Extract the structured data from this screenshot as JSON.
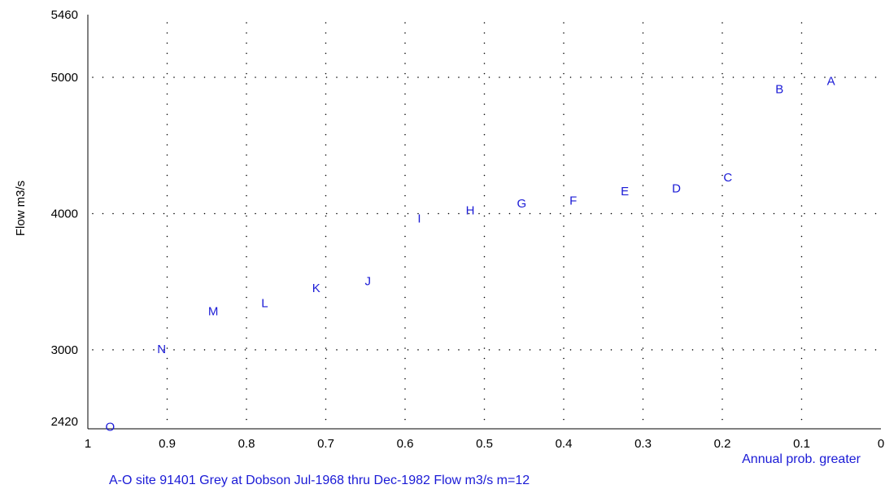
{
  "chart_data": {
    "type": "scatter",
    "xlabel": "Annual prob. greater",
    "ylabel": "Flow m3/s",
    "caption": "A-O  site 91401 Grey at Dobson  Jul-1968 thru Dec-1982 Flow m3/s  m=12",
    "xlim": [
      1,
      0
    ],
    "ylim": [
      2420,
      5460
    ],
    "x_ticks": [
      {
        "value": 1,
        "label": "1"
      },
      {
        "value": 0.9,
        "label": "0.9"
      },
      {
        "value": 0.8,
        "label": "0.8"
      },
      {
        "value": 0.7,
        "label": "0.7"
      },
      {
        "value": 0.6,
        "label": "0.6"
      },
      {
        "value": 0.5,
        "label": "0.5"
      },
      {
        "value": 0.4,
        "label": "0.4"
      },
      {
        "value": 0.3,
        "label": "0.3"
      },
      {
        "value": 0.2,
        "label": "0.2"
      },
      {
        "value": 0.1,
        "label": "0.1"
      },
      {
        "value": 0,
        "label": "0"
      }
    ],
    "y_ticks": [
      {
        "value": 5460,
        "label": "5460"
      },
      {
        "value": 5000,
        "label": "5000"
      },
      {
        "value": 4000,
        "label": "4000"
      },
      {
        "value": 3000,
        "label": "3000"
      },
      {
        "value": 2420,
        "label": "2420"
      }
    ],
    "grid": true,
    "points": [
      {
        "label": "A",
        "x": 0.063,
        "y": 4980
      },
      {
        "label": "B",
        "x": 0.128,
        "y": 4920
      },
      {
        "label": "C",
        "x": 0.193,
        "y": 4270
      },
      {
        "label": "D",
        "x": 0.258,
        "y": 4190
      },
      {
        "label": "E",
        "x": 0.323,
        "y": 4170
      },
      {
        "label": "F",
        "x": 0.388,
        "y": 4100
      },
      {
        "label": "G",
        "x": 0.453,
        "y": 4080
      },
      {
        "label": "H",
        "x": 0.518,
        "y": 4030
      },
      {
        "label": "I",
        "x": 0.582,
        "y": 3970
      },
      {
        "label": "J",
        "x": 0.647,
        "y": 3510
      },
      {
        "label": "K",
        "x": 0.712,
        "y": 3460
      },
      {
        "label": "L",
        "x": 0.777,
        "y": 3350
      },
      {
        "label": "M",
        "x": 0.842,
        "y": 3290
      },
      {
        "label": "N",
        "x": 0.907,
        "y": 3010
      },
      {
        "label": "O",
        "x": 0.972,
        "y": 2440
      }
    ],
    "colors": {
      "points": "#1a1ad6",
      "grid": "#000000",
      "axis": "#000000"
    }
  }
}
